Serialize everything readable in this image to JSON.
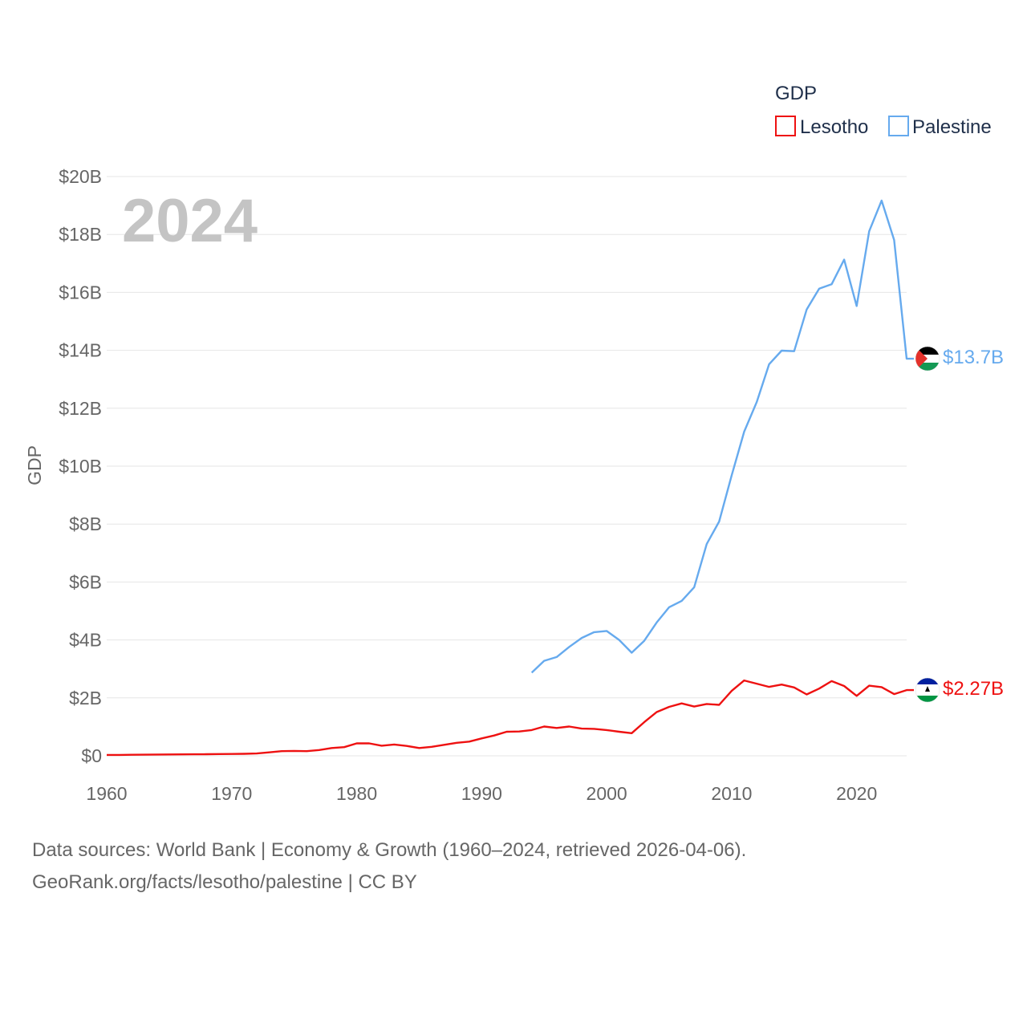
{
  "chart_data": {
    "type": "line",
    "year_label": "2024",
    "ylabel": "GDP",
    "legend_title": "GDP",
    "x_ticks": [
      1960,
      1970,
      1980,
      1990,
      2000,
      2010,
      2020
    ],
    "xlim": [
      1960,
      2024
    ],
    "ylim": [
      0,
      20
    ],
    "y_ticks": [
      {
        "value": 0,
        "label": "$0"
      },
      {
        "value": 2,
        "label": "$2B"
      },
      {
        "value": 4,
        "label": "$4B"
      },
      {
        "value": 6,
        "label": "$6B"
      },
      {
        "value": 8,
        "label": "$8B"
      },
      {
        "value": 10,
        "label": "$10B"
      },
      {
        "value": 12,
        "label": "$12B"
      },
      {
        "value": 14,
        "label": "$14B"
      },
      {
        "value": 16,
        "label": "$16B"
      },
      {
        "value": 18,
        "label": "$18B"
      },
      {
        "value": 20,
        "label": "$20B"
      }
    ],
    "series": [
      {
        "name": "Lesotho",
        "color": "#ee1111",
        "end_label": "$2.27B",
        "flag": "lesotho-flag",
        "x": [
          1960,
          1961,
          1962,
          1963,
          1964,
          1965,
          1966,
          1967,
          1968,
          1969,
          1970,
          1971,
          1972,
          1973,
          1974,
          1975,
          1976,
          1977,
          1978,
          1979,
          1980,
          1981,
          1982,
          1983,
          1984,
          1985,
          1986,
          1987,
          1988,
          1989,
          1990,
          1991,
          1992,
          1993,
          1994,
          1995,
          1996,
          1997,
          1998,
          1999,
          2000,
          2001,
          2002,
          2003,
          2004,
          2005,
          2006,
          2007,
          2008,
          2009,
          2010,
          2011,
          2012,
          2013,
          2014,
          2015,
          2016,
          2017,
          2018,
          2019,
          2020,
          2021,
          2022,
          2023,
          2024
        ],
        "values": [
          0.03,
          0.03,
          0.035,
          0.04,
          0.045,
          0.047,
          0.05,
          0.053,
          0.056,
          0.06,
          0.065,
          0.07,
          0.08,
          0.12,
          0.16,
          0.17,
          0.16,
          0.2,
          0.27,
          0.3,
          0.43,
          0.43,
          0.35,
          0.39,
          0.34,
          0.27,
          0.31,
          0.38,
          0.45,
          0.49,
          0.6,
          0.7,
          0.83,
          0.84,
          0.89,
          1.01,
          0.96,
          1.01,
          0.94,
          0.93,
          0.89,
          0.83,
          0.78,
          1.16,
          1.51,
          1.69,
          1.81,
          1.7,
          1.79,
          1.76,
          2.24,
          2.6,
          2.49,
          2.38,
          2.46,
          2.36,
          2.12,
          2.32,
          2.58,
          2.41,
          2.07,
          2.42,
          2.37,
          2.13,
          2.27
        ]
      },
      {
        "name": "Palestine",
        "color": "#66aaee",
        "end_label": "$13.7B",
        "flag": "palestine-flag",
        "x": [
          1994,
          1995,
          1996,
          1997,
          1998,
          1999,
          2000,
          2001,
          2002,
          2003,
          2004,
          2005,
          2006,
          2007,
          2008,
          2009,
          2010,
          2011,
          2012,
          2013,
          2014,
          2015,
          2016,
          2017,
          2018,
          2019,
          2020,
          2021,
          2022,
          2023,
          2024
        ],
        "values": [
          2.87,
          3.28,
          3.41,
          3.76,
          4.07,
          4.27,
          4.31,
          4.0,
          3.56,
          3.97,
          4.6,
          5.13,
          5.35,
          5.82,
          7.31,
          8.09,
          9.68,
          11.19,
          12.21,
          13.52,
          13.99,
          13.97,
          15.41,
          16.13,
          16.28,
          17.13,
          15.53,
          18.11,
          19.17,
          17.81,
          13.71
        ]
      }
    ]
  },
  "footer": {
    "line1": "Data sources: World Bank | Economy & Growth (1960–2024, retrieved 2026-04-06).",
    "line2": "GeoRank.org/facts/lesotho/palestine | CC BY"
  }
}
